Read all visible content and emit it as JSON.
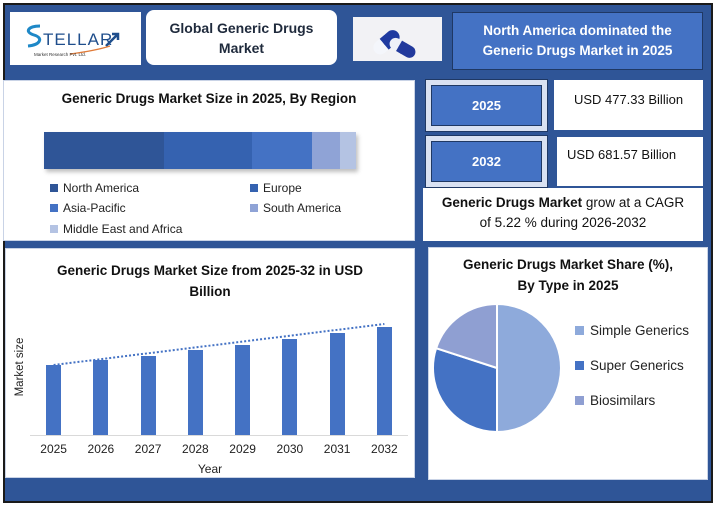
{
  "header": {
    "logo": {
      "brand": "STELLAR",
      "tagline": "Market Research Pvt. Ltd."
    },
    "title": "Global Generic Drugs Market",
    "callout": "North America dominated the Generic Drugs Market in 2025",
    "image_icon": "capsule-pills-icon"
  },
  "region_panel": {
    "title": "Generic Drugs Market Size in 2025, By Region"
  },
  "stats": {
    "start": {
      "year": "2025",
      "value": "USD 477.33 Billion"
    },
    "end": {
      "year": "2032",
      "value": "USD 681.57 Billion"
    },
    "cagr": {
      "bold": "Generic Drugs Market",
      "text_1": " grow at a CAGR",
      "text_2": "of 5.22 % during 2026-2032"
    }
  },
  "bar_panel": {
    "title_line1": "Generic Drugs Market Size from 2025-32 in USD",
    "title_line2": "Billion"
  },
  "pie_panel": {
    "title_line1": "Generic Drugs Market Share (%),",
    "title_line2": "By Type in 2025"
  },
  "colors": {
    "frame_bg": "#2f5597",
    "accent": "#4472c4",
    "dark_border": "#1f3864"
  },
  "chart_data": [
    {
      "type": "bar",
      "subtype": "stacked-horizontal-100",
      "title": "Generic Drugs Market Size in 2025, By Region",
      "categories": [
        "2025"
      ],
      "series": [
        {
          "name": "North America",
          "values": [
            38
          ],
          "color": "#2f5597"
        },
        {
          "name": "Europe",
          "values": [
            28
          ],
          "color": "#3562b0"
        },
        {
          "name": "Asia-Pacific",
          "values": [
            19
          ],
          "color": "#4472c4"
        },
        {
          "name": "South America",
          "values": [
            9
          ],
          "color": "#8fa3d6"
        },
        {
          "name": "Middle East and Africa",
          "values": [
            5
          ],
          "color": "#b4c3e3"
        }
      ],
      "legend": [
        "North America",
        "Europe",
        "Asia-Pacific",
        "South America",
        "Middle East and Africa"
      ],
      "legend_position": "bottom",
      "xlabel": "",
      "ylabel": "",
      "grid": false
    },
    {
      "type": "bar",
      "title": "Generic Drugs Market Size from 2025-32 in USD Billion",
      "categories": [
        "2025",
        "2026",
        "2027",
        "2028",
        "2029",
        "2030",
        "2031",
        "2032"
      ],
      "values": [
        477.33,
        502.2,
        528.4,
        556.0,
        585.0,
        615.5,
        647.6,
        681.57
      ],
      "trendline": "linear-dotted",
      "xlabel": "Year",
      "ylabel": "Market size",
      "ylim": [
        0,
        700
      ],
      "grid": false,
      "y_tick_labels_visible": false,
      "color": "#4472c4"
    },
    {
      "type": "pie",
      "title": "Generic Drugs Market Share (%), By Type in 2025",
      "labels": [
        "Simple Generics",
        "Super Generics",
        "Biosimilars"
      ],
      "values": [
        50,
        30,
        20
      ],
      "colors": [
        "#8eaadb",
        "#4472c4",
        "#8f9fd2"
      ],
      "legend_position": "right"
    }
  ]
}
